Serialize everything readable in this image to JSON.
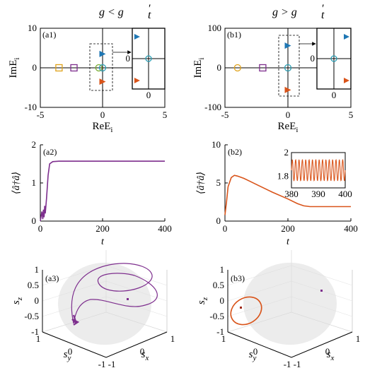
{
  "colors": {
    "blue": "#1f77b4",
    "teal": "#2a9fb5",
    "orange": "#d9541a",
    "yellow": "#e0a21a",
    "purple": "#7e2f8e",
    "green": "#77ac30",
    "sphere": "#dcdcdc"
  },
  "panels": {
    "a1": {
      "label": "(a1)",
      "title": "g < g′t",
      "title_main": "g < g",
      "title_sub": "t",
      "title_prime": "′"
    },
    "b1": {
      "label": "(b1)",
      "title": "g > g′t",
      "title_main": "g > g",
      "title_sub": "t",
      "title_prime": "′"
    },
    "a2": {
      "label": "(a2)"
    },
    "b2": {
      "label": "(b2)"
    },
    "a3": {
      "label": "(a3)"
    },
    "b3": {
      "label": "(b3)"
    }
  },
  "chart_data": [
    {
      "id": "a1",
      "type": "scatter",
      "xlabel": "ReE",
      "xlabel_sub": "i",
      "ylabel": "ImE",
      "ylabel_sub": "i",
      "xlim": [
        -5,
        5
      ],
      "ylim": [
        -10,
        10
      ],
      "xticks": [
        "-5",
        "0",
        "5"
      ],
      "yticks": [
        "-10",
        "0",
        "10"
      ],
      "points": [
        {
          "x": -3.5,
          "y": 0,
          "marker": "square",
          "color": "yellow"
        },
        {
          "x": -2.3,
          "y": 0,
          "marker": "square",
          "color": "purple"
        },
        {
          "x": -0.3,
          "y": 0,
          "marker": "circle",
          "color": "green"
        },
        {
          "x": 0,
          "y": 0,
          "marker": "circle",
          "color": "teal"
        },
        {
          "x": 0,
          "y": 3.5,
          "marker": "triangle",
          "color": "blue"
        },
        {
          "x": 0,
          "y": -3.5,
          "marker": "triangle",
          "color": "orange"
        }
      ],
      "inset": {
        "tick_y": "0",
        "tick_x": "0",
        "points": [
          {
            "x": 0,
            "y": 0,
            "marker": "circle",
            "color": "teal"
          },
          {
            "x": -0.7,
            "y": 0.72,
            "marker": "triangle",
            "color": "blue"
          },
          {
            "x": -0.7,
            "y": -0.72,
            "marker": "triangle",
            "color": "orange"
          }
        ]
      }
    },
    {
      "id": "b1",
      "type": "scatter",
      "xlabel": "ReE",
      "xlabel_sub": "i",
      "ylabel": "ImE",
      "ylabel_sub": "i",
      "xlim": [
        -5,
        5
      ],
      "ylim": [
        -100,
        100
      ],
      "xticks": [
        "-5",
        "0",
        "5"
      ],
      "yticks": [
        "-100",
        "0",
        "100"
      ],
      "points": [
        {
          "x": -4,
          "y": 0,
          "marker": "circle",
          "color": "yellow"
        },
        {
          "x": -2,
          "y": 0,
          "marker": "square",
          "color": "purple"
        },
        {
          "x": 0,
          "y": 0,
          "marker": "circle",
          "color": "teal"
        },
        {
          "x": 0,
          "y": 56,
          "marker": "triangle",
          "color": "blue"
        },
        {
          "x": 0,
          "y": -56,
          "marker": "triangle",
          "color": "orange"
        }
      ],
      "inset": {
        "tick_y": "0",
        "tick_x": "0",
        "points": [
          {
            "x": 0,
            "y": 0,
            "marker": "circle",
            "color": "teal"
          },
          {
            "x": 0.75,
            "y": 0.72,
            "marker": "triangle",
            "color": "blue"
          },
          {
            "x": 0.75,
            "y": -0.72,
            "marker": "triangle",
            "color": "orange"
          }
        ]
      }
    },
    {
      "id": "a2",
      "type": "line",
      "xlabel": "t",
      "ylabel": "⟨â†â⟩",
      "xlim": [
        0,
        400
      ],
      "ylim": [
        0,
        2
      ],
      "xticks": [
        "0",
        "200",
        "400"
      ],
      "yticks": [
        "0",
        "1",
        "2"
      ],
      "series": [
        {
          "color": "purple",
          "x": [
            0,
            5,
            8,
            10,
            12,
            14,
            16,
            20,
            25,
            30,
            40,
            60,
            100,
            200,
            300,
            400
          ],
          "y": [
            0,
            0.25,
            0.05,
            0.3,
            0.1,
            0.4,
            0.2,
            0.6,
            1.2,
            1.5,
            1.56,
            1.57,
            1.57,
            1.57,
            1.57,
            1.57
          ]
        }
      ]
    },
    {
      "id": "b2",
      "type": "line",
      "xlabel": "t",
      "ylabel": "⟨â†â⟩",
      "xlim": [
        0,
        400
      ],
      "ylim": [
        0,
        10
      ],
      "xticks": [
        "0",
        "200",
        "400"
      ],
      "yticks": [
        "0",
        "5",
        "10"
      ],
      "series": [
        {
          "color": "orange",
          "x": [
            0,
            5,
            10,
            20,
            30,
            40,
            60,
            80,
            100,
            150,
            200,
            230,
            250,
            270,
            300,
            350,
            400
          ],
          "y": [
            0.8,
            2.5,
            4.5,
            5.7,
            6.0,
            5.9,
            5.6,
            5.2,
            4.8,
            3.8,
            2.9,
            2.3,
            2.0,
            1.9,
            1.9,
            1.9,
            1.9
          ]
        }
      ],
      "inset": {
        "xlim": [
          380,
          400
        ],
        "ylim": [
          1.7,
          2
        ],
        "xticks": [
          "380",
          "390",
          "400"
        ],
        "yticks": [
          "1.8",
          "2"
        ],
        "mean": 1.85,
        "amplitude": 0.09,
        "period": 1.25
      }
    },
    {
      "id": "a3",
      "type": "scatter",
      "xlabel": "s",
      "xlabel_sub": "x",
      "ylabel": "s",
      "ylabel_sub": "y",
      "zlabel": "s",
      "zlabel_sub": "z",
      "xticks": [
        "-1",
        "0",
        "1"
      ],
      "yticks": [
        "1",
        "0",
        "-1"
      ],
      "zticks": [
        "-1",
        "-0.5",
        "0",
        "0.5",
        "1"
      ]
    },
    {
      "id": "b3",
      "type": "scatter",
      "xlabel": "s",
      "xlabel_sub": "x",
      "ylabel": "s",
      "ylabel_sub": "y",
      "zlabel": "s",
      "zlabel_sub": "z",
      "xticks": [
        "-1",
        "0",
        "1"
      ],
      "yticks": [
        "1",
        "0",
        "-1"
      ],
      "zticks": [
        "-1",
        "-0.5",
        "0",
        "0.5",
        "1"
      ]
    }
  ]
}
